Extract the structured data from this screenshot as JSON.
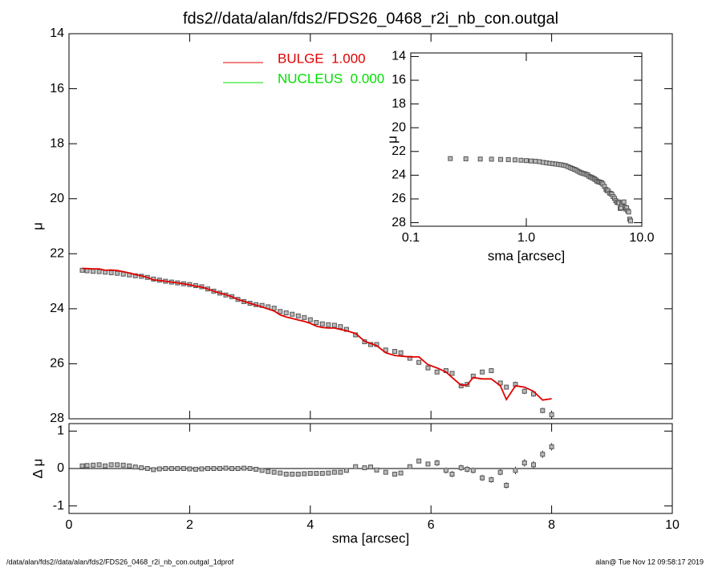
{
  "footer_left": "/data/alan/fds2//data/alan/fds2/FDS26_0468_r2i_nb_con.outgal_1dprof",
  "footer_right": "alan@  Tue Nov 12 09:58:17 2019",
  "chart_data": [
    {
      "type": "scatter",
      "title": "fds2//data/alan/fds2/FDS26_0468_r2i_nb_con.outgal",
      "ylabel": "μ",
      "xlim": [
        0,
        10
      ],
      "xticks": [
        0,
        2,
        4,
        6,
        8,
        10
      ],
      "ylim": [
        14,
        28
      ],
      "y_inverted": true,
      "yticks": [
        14,
        16,
        18,
        20,
        22,
        24,
        26,
        28
      ],
      "legend": [
        {
          "label": "BULGE  1.000",
          "color": "#e00000"
        },
        {
          "label": "NUCLEUS  0.000",
          "color": "#00e000"
        }
      ],
      "x": [
        0.22,
        0.3,
        0.4,
        0.5,
        0.6,
        0.7,
        0.8,
        0.9,
        1.0,
        1.1,
        1.2,
        1.3,
        1.4,
        1.5,
        1.6,
        1.7,
        1.8,
        1.9,
        2.0,
        2.1,
        2.2,
        2.3,
        2.4,
        2.5,
        2.6,
        2.7,
        2.8,
        2.9,
        3.0,
        3.1,
        3.2,
        3.3,
        3.4,
        3.5,
        3.6,
        3.7,
        3.8,
        3.9,
        4.0,
        4.1,
        4.2,
        4.3,
        4.4,
        4.5,
        4.6,
        4.75,
        4.9,
        5.0,
        5.1,
        5.25,
        5.4,
        5.5,
        5.65,
        5.8,
        5.95,
        6.1,
        6.25,
        6.35,
        6.5,
        6.6,
        6.7,
        6.85,
        7.0,
        7.15,
        7.25,
        7.4,
        7.55,
        7.7,
        7.85,
        8.0
      ],
      "series": [
        {
          "color": "#555555",
          "values": [
            22.6,
            22.62,
            22.64,
            22.65,
            22.67,
            22.69,
            22.71,
            22.74,
            22.77,
            22.8,
            22.82,
            22.86,
            22.92,
            22.96,
            23.0,
            23.03,
            23.06,
            23.09,
            23.12,
            23.16,
            23.2,
            23.28,
            23.36,
            23.43,
            23.5,
            23.56,
            23.66,
            23.74,
            23.8,
            23.85,
            23.88,
            23.93,
            23.98,
            24.1,
            24.15,
            24.2,
            24.26,
            24.32,
            24.4,
            24.5,
            24.55,
            24.58,
            24.6,
            24.65,
            24.75,
            24.95,
            25.2,
            25.3,
            25.3,
            25.5,
            25.55,
            25.6,
            25.8,
            25.95,
            26.15,
            26.3,
            26.25,
            26.35,
            26.8,
            26.75,
            26.45,
            26.3,
            26.25,
            26.7,
            26.85,
            26.75,
            27.0,
            27.1,
            27.7,
            27.85
          ],
          "errors": [
            0.02,
            0.02,
            0.02,
            0.02,
            0.02,
            0.02,
            0.02,
            0.02,
            0.02,
            0.02,
            0.02,
            0.02,
            0.02,
            0.02,
            0.02,
            0.02,
            0.02,
            0.02,
            0.02,
            0.02,
            0.02,
            0.02,
            0.02,
            0.02,
            0.02,
            0.02,
            0.02,
            0.02,
            0.02,
            0.02,
            0.03,
            0.03,
            0.03,
            0.03,
            0.03,
            0.03,
            0.03,
            0.03,
            0.03,
            0.03,
            0.03,
            0.03,
            0.03,
            0.03,
            0.03,
            0.05,
            0.05,
            0.05,
            0.05,
            0.05,
            0.05,
            0.05,
            0.05,
            0.05,
            0.05,
            0.08,
            0.08,
            0.08,
            0.08,
            0.08,
            0.08,
            0.08,
            0.08,
            0.08,
            0.08,
            0.1,
            0.1,
            0.1,
            0.1,
            0.1
          ]
        },
        {
          "color": "#e00000",
          "line": true,
          "values": [
            22.53,
            22.54,
            22.55,
            22.55,
            22.6,
            22.59,
            22.61,
            22.65,
            22.7,
            22.76,
            22.8,
            22.86,
            22.95,
            22.97,
            23.0,
            23.03,
            23.06,
            23.09,
            23.13,
            23.18,
            23.21,
            23.28,
            23.36,
            23.43,
            23.49,
            23.56,
            23.66,
            23.73,
            23.8,
            23.87,
            23.93,
            24.01,
            24.08,
            24.22,
            24.3,
            24.35,
            24.41,
            24.46,
            24.53,
            24.63,
            24.68,
            24.7,
            24.7,
            24.75,
            24.8,
            24.9,
            25.18,
            25.26,
            25.34,
            25.6,
            25.7,
            25.72,
            25.75,
            25.75,
            26.03,
            26.15,
            26.3,
            26.5,
            26.78,
            26.77,
            26.5,
            26.55,
            26.55,
            26.8,
            27.3,
            26.8,
            26.85,
            27.0,
            27.32,
            27.27
          ]
        }
      ]
    },
    {
      "type": "residual",
      "xlabel": "sma [arcsec]",
      "ylabel": "Δ μ",
      "xlim": [
        0,
        10
      ],
      "xticks": [
        0,
        2,
        4,
        6,
        8,
        10
      ],
      "ylim": [
        -1.2,
        1.2
      ],
      "yticks": [
        -1,
        0,
        1
      ],
      "reference_line": 0,
      "series": [
        {
          "color": "#555555",
          "values": [
            0.07,
            0.08,
            0.09,
            0.1,
            0.07,
            0.1,
            0.1,
            0.09,
            0.07,
            0.04,
            0.02,
            0.0,
            -0.03,
            -0.01,
            0.0,
            0.0,
            0.0,
            0.0,
            -0.01,
            -0.02,
            -0.01,
            0.0,
            0.0,
            0.0,
            0.01,
            0.0,
            0.0,
            0.01,
            0.0,
            -0.02,
            -0.05,
            -0.08,
            -0.1,
            -0.12,
            -0.15,
            -0.15,
            -0.15,
            -0.14,
            -0.13,
            -0.13,
            -0.13,
            -0.12,
            -0.1,
            -0.1,
            -0.05,
            0.05,
            0.02,
            0.04,
            -0.04,
            -0.1,
            -0.15,
            -0.12,
            0.05,
            0.2,
            0.12,
            0.15,
            -0.05,
            -0.15,
            0.02,
            -0.02,
            -0.05,
            -0.25,
            -0.3,
            -0.1,
            -0.45,
            -0.05,
            0.15,
            0.1,
            0.38,
            0.58
          ],
          "errors": [
            0.02,
            0.02,
            0.02,
            0.02,
            0.02,
            0.02,
            0.02,
            0.02,
            0.02,
            0.02,
            0.02,
            0.02,
            0.02,
            0.02,
            0.02,
            0.02,
            0.02,
            0.02,
            0.02,
            0.02,
            0.02,
            0.02,
            0.02,
            0.02,
            0.02,
            0.02,
            0.02,
            0.02,
            0.02,
            0.02,
            0.03,
            0.03,
            0.03,
            0.03,
            0.03,
            0.03,
            0.03,
            0.03,
            0.03,
            0.03,
            0.03,
            0.03,
            0.03,
            0.03,
            0.03,
            0.05,
            0.05,
            0.05,
            0.05,
            0.05,
            0.05,
            0.05,
            0.05,
            0.05,
            0.05,
            0.08,
            0.08,
            0.08,
            0.08,
            0.08,
            0.08,
            0.08,
            0.08,
            0.08,
            0.08,
            0.1,
            0.1,
            0.1,
            0.1,
            0.1
          ]
        }
      ]
    },
    {
      "type": "inset",
      "xlabel": "sma [arcsec]",
      "ylabel": "μ",
      "xlog": true,
      "xlim": [
        0.1,
        10
      ],
      "xticks": [
        {
          "value": 0.1,
          "label": "0.1"
        },
        {
          "value": 1,
          "label": "1.0"
        },
        {
          "value": 10,
          "label": "10.0"
        }
      ],
      "ylim": [
        13.7,
        28.3
      ],
      "y_inverted": true,
      "yticks": [
        14,
        16,
        18,
        20,
        22,
        24,
        26,
        28
      ]
    }
  ]
}
